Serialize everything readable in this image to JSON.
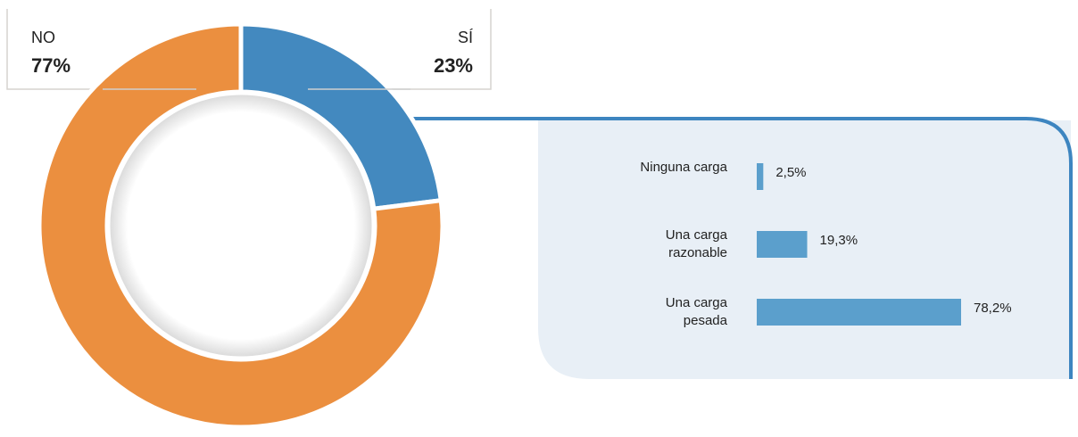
{
  "chart_data": [
    {
      "type": "donut",
      "categories": [
        "SÍ",
        "NO"
      ],
      "values": [
        23,
        77
      ],
      "value_labels": [
        "23%",
        "77%"
      ],
      "colors": [
        "#4389bf",
        "#eb8f3f"
      ]
    },
    {
      "type": "bar",
      "orientation": "horizontal",
      "categories": [
        "Ninguna carga",
        "Una carga razonable",
        "Una carga pesada"
      ],
      "values": [
        2.5,
        19.3,
        78.2
      ],
      "value_labels": [
        "2,5%",
        "19,3%",
        "78,2%"
      ],
      "color": "#5b9fcc"
    }
  ]
}
